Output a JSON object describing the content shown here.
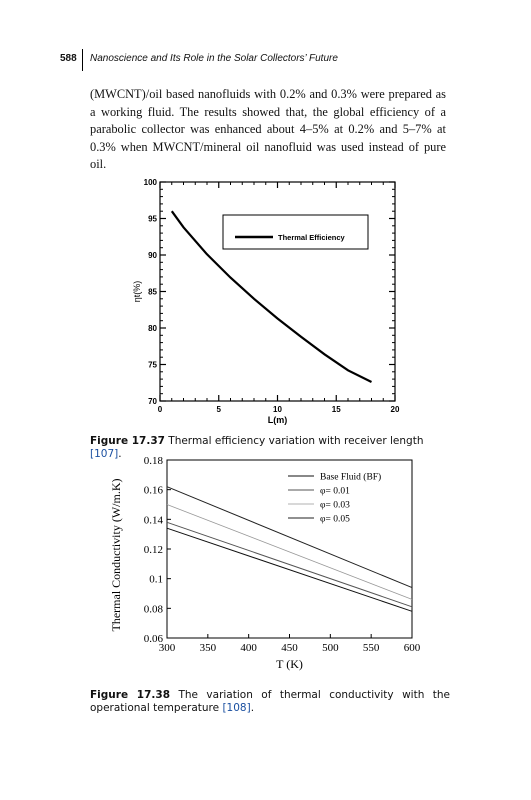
{
  "header": {
    "page_number": "588",
    "running_title": "Nanoscience and Its Role in the Solar Collectors’ Future"
  },
  "body": {
    "paragraph": "(MWCNT)/oil based nanofluids with 0.2% and 0.3% were prepared as a working fluid. The results showed that, the global efficiency of a parabolic collector was enhanced about 4–5% at 0.2% and 5–7% at 0.3% when MWCNT/mineral oil nanofluid was used instead of pure oil."
  },
  "figure1": {
    "caption_label": "Figure 17.37",
    "caption_text": "Thermal efficiency variation with receiver length",
    "caption_ref": "[107]",
    "caption_end": "."
  },
  "figure2": {
    "caption_label": "Figure 17.38",
    "caption_text": "The variation of thermal conductivity with the operational temperature",
    "caption_ref": "[108]",
    "caption_end": "."
  },
  "chart_data": [
    {
      "type": "line",
      "title": "",
      "xlabel": "L(m)",
      "ylabel": "ηt(%)",
      "xlim": [
        0,
        20
      ],
      "ylim": [
        70,
        100
      ],
      "xticks": [
        "0",
        "5",
        "10",
        "15",
        "20"
      ],
      "yticks": [
        "70",
        "75",
        "80",
        "85",
        "90",
        "95",
        "100"
      ],
      "grid": false,
      "legend_position": "right-upper",
      "series": [
        {
          "name": "Thermal Efficiency",
          "color": "#000000",
          "x": [
            1,
            2,
            4,
            6,
            8,
            10,
            12,
            14,
            16,
            18
          ],
          "y": [
            96.0,
            93.8,
            90.1,
            86.9,
            84.0,
            81.3,
            78.8,
            76.4,
            74.2,
            72.6
          ]
        }
      ]
    },
    {
      "type": "line",
      "title": "",
      "xlabel": "T (K)",
      "ylabel": "Thermal Conductivity (W/m.K)",
      "xlim": [
        300,
        600
      ],
      "ylim": [
        0.06,
        0.18
      ],
      "xticks": [
        "300",
        "350",
        "400",
        "450",
        "500",
        "550",
        "600"
      ],
      "yticks": [
        "0.06",
        "0.08",
        "0.1",
        "0.12",
        "0.14",
        "0.16",
        "0.18"
      ],
      "grid": false,
      "legend_position": "top-right",
      "series": [
        {
          "name": "Base Fluid (BF)",
          "color": "#111111",
          "x": [
            300,
            600
          ],
          "y": [
            0.134,
            0.078
          ]
        },
        {
          "name": "φ= 0.01",
          "color": "#555555",
          "x": [
            300,
            600
          ],
          "y": [
            0.138,
            0.081
          ]
        },
        {
          "name": "φ= 0.03",
          "color": "#999999",
          "x": [
            300,
            600
          ],
          "y": [
            0.15,
            0.086
          ]
        },
        {
          "name": "φ= 0.05",
          "color": "#222222",
          "x": [
            300,
            600
          ],
          "y": [
            0.162,
            0.094
          ]
        }
      ]
    }
  ]
}
